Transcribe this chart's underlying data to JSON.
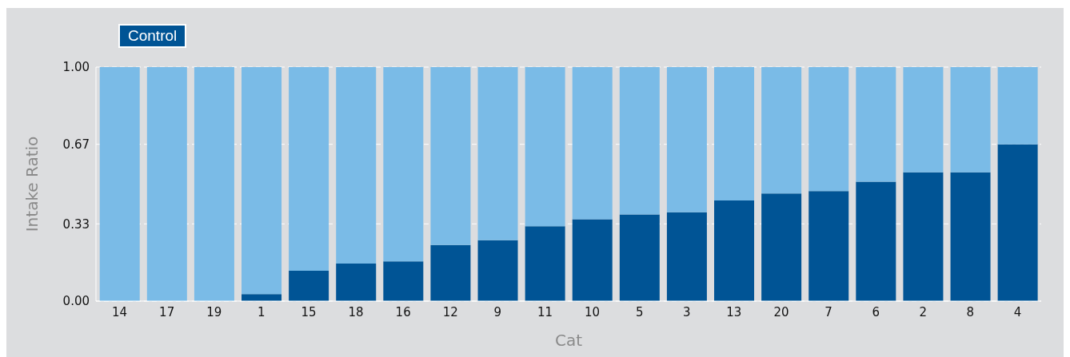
{
  "chart_data": {
    "type": "bar",
    "stacked": true,
    "xlabel": "Cat",
    "ylabel": "Intake Ratio",
    "categories": [
      "14",
      "17",
      "19",
      "1",
      "15",
      "18",
      "16",
      "12",
      "9",
      "11",
      "10",
      "5",
      "3",
      "13",
      "20",
      "7",
      "6",
      "2",
      "8",
      "4"
    ],
    "series": [
      {
        "name": "Control",
        "color": "#005495",
        "values": [
          0,
          0,
          0,
          0.03,
          0.13,
          0.16,
          0.17,
          0.24,
          0.26,
          0.32,
          0.35,
          0.37,
          0.38,
          0.43,
          0.46,
          0.47,
          0.51,
          0.55,
          0.55,
          0.67
        ]
      },
      {
        "color": "#7abbe7",
        "values": [
          1,
          1,
          1,
          0.97,
          0.87,
          0.84,
          0.83,
          0.76,
          0.74,
          0.68,
          0.65,
          0.63,
          0.62,
          0.57,
          0.54,
          0.53,
          0.49,
          0.45,
          0.45,
          0.33
        ]
      }
    ],
    "ylim": [
      0,
      1
    ],
    "yticks": [
      {
        "value": 0,
        "label": "0.00"
      },
      {
        "value": 0.33,
        "label": "0.33"
      },
      {
        "value": 0.67,
        "label": "0.67"
      },
      {
        "value": 1,
        "label": "1.00"
      }
    ],
    "grid": "y",
    "legend": "top left"
  }
}
